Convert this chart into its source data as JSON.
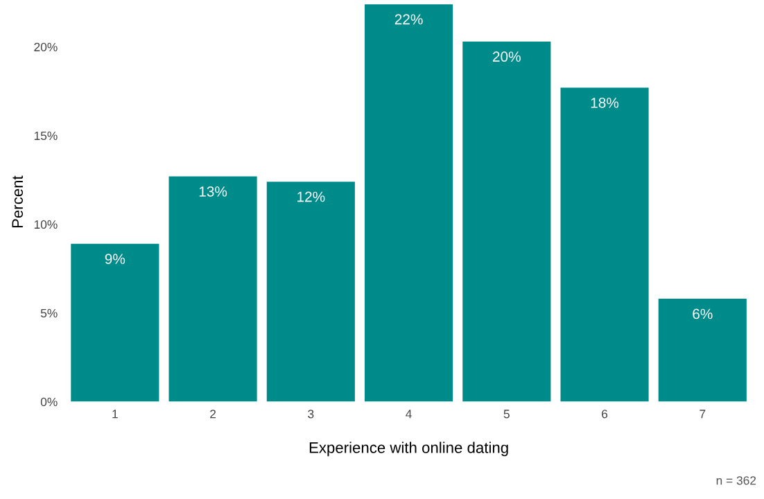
{
  "chart_data": {
    "type": "bar",
    "xlabel": "Experience with online dating",
    "ylabel": "Percent",
    "categories": [
      "1",
      "2",
      "3",
      "4",
      "5",
      "6",
      "7"
    ],
    "values": [
      8.9,
      12.7,
      12.4,
      22.4,
      20.3,
      17.7,
      5.8
    ],
    "value_labels": [
      "9%",
      "13%",
      "12%",
      "22%",
      "20%",
      "18%",
      "6%"
    ],
    "color": "#008b8b",
    "ylim": [
      0,
      22.5
    ],
    "yticks": [
      {
        "value": 0,
        "label": "0%"
      },
      {
        "value": 5,
        "label": "5%"
      },
      {
        "value": 10,
        "label": "10%"
      },
      {
        "value": 15,
        "label": "15%"
      },
      {
        "value": 20,
        "label": "20%"
      }
    ],
    "grid": false,
    "annotations": [
      "n = 362"
    ]
  }
}
